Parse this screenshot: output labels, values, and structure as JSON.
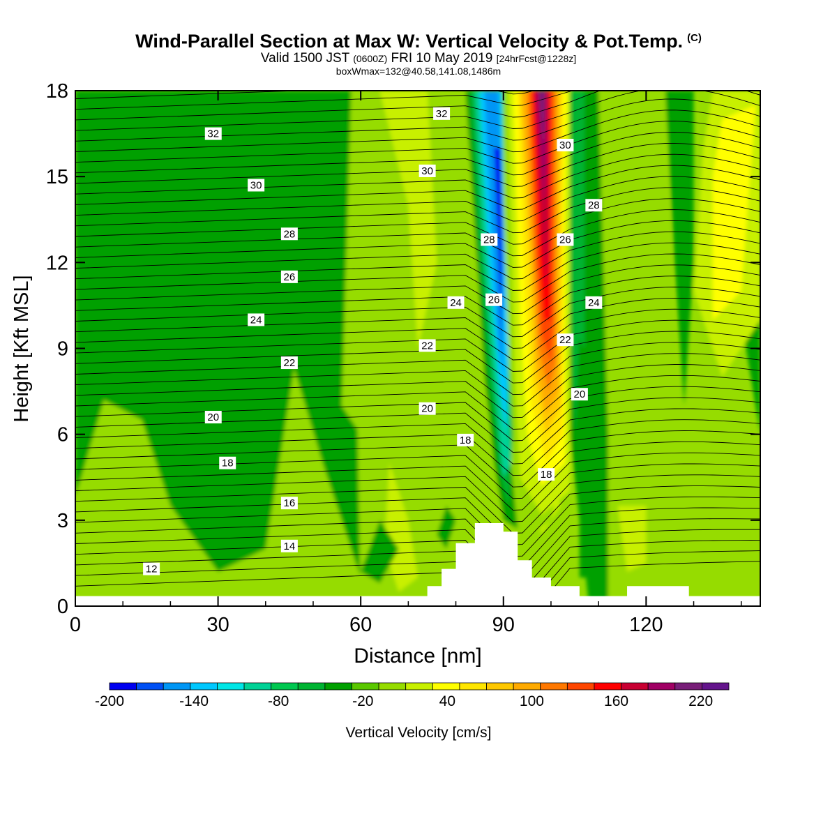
{
  "header": {
    "title": "Wind-Parallel Section at Max W: Vertical Velocity & Pot.Temp.",
    "copyright": "(C)",
    "valid_prefix": "Valid 1500 JST",
    "valid_utc": "(0600Z)",
    "valid_date": "FRI 10 May 2019",
    "forecast": "[24hrFcst@1228z]",
    "boxwmax": "boxWmax=132@40.58,141.08,1486m"
  },
  "chart_data": {
    "type": "heatmap",
    "title": "Wind-Parallel Section at Max W: Vertical Velocity & Pot.Temp.",
    "xlabel": "Distance [nm]",
    "ylabel": "Height [Kft MSL]",
    "xlim": [
      0,
      144
    ],
    "ylim": [
      0,
      18
    ],
    "xticks": [
      0,
      30,
      60,
      90,
      120
    ],
    "yticks": [
      0,
      3,
      6,
      9,
      12,
      15,
      18
    ],
    "colorbar": {
      "label": "Vertical Velocity [cm/s]",
      "tick_labels": [
        "-200",
        "-140",
        "-80",
        "-20",
        "40",
        "100",
        "160",
        "220"
      ],
      "tick_values": [
        -200,
        -140,
        -80,
        -20,
        40,
        100,
        160,
        220
      ],
      "bin_edges": [
        -200,
        -180,
        -160,
        -140,
        -120,
        -100,
        -80,
        -60,
        -40,
        -20,
        0,
        20,
        40,
        60,
        80,
        100,
        120,
        140,
        160,
        180,
        200,
        220,
        240
      ],
      "colors": [
        "#0000f0",
        "#0050f5",
        "#0096f5",
        "#00c8ff",
        "#00e6e6",
        "#00d296",
        "#00c850",
        "#00b432",
        "#00a000",
        "#5ac800",
        "#96dc00",
        "#c8f000",
        "#ffff00",
        "#ffe600",
        "#ffc800",
        "#ffaa00",
        "#ff7800",
        "#ff4600",
        "#ff0000",
        "#c80032",
        "#a00064",
        "#781e78",
        "#64148c"
      ]
    },
    "terrain": [
      {
        "x": 0,
        "h": 0.35
      },
      {
        "x": 74,
        "h": 0.35
      },
      {
        "x": 74,
        "h": 0.7
      },
      {
        "x": 77,
        "h": 0.7
      },
      {
        "x": 77,
        "h": 1.3
      },
      {
        "x": 80,
        "h": 1.3
      },
      {
        "x": 80,
        "h": 2.2
      },
      {
        "x": 84,
        "h": 2.2
      },
      {
        "x": 84,
        "h": 2.9
      },
      {
        "x": 90,
        "h": 2.9
      },
      {
        "x": 90,
        "h": 2.6
      },
      {
        "x": 93,
        "h": 2.6
      },
      {
        "x": 93,
        "h": 1.6
      },
      {
        "x": 96,
        "h": 1.6
      },
      {
        "x": 96,
        "h": 1.0
      },
      {
        "x": 100,
        "h": 1.0
      },
      {
        "x": 100,
        "h": 0.7
      },
      {
        "x": 106,
        "h": 0.7
      },
      {
        "x": 106,
        "h": 0.35
      },
      {
        "x": 116,
        "h": 0.35
      },
      {
        "x": 116,
        "h": 0.7
      },
      {
        "x": 129,
        "h": 0.7
      },
      {
        "x": 129,
        "h": 0.35
      },
      {
        "x": 144,
        "h": 0.35
      }
    ],
    "contour_labels": [
      {
        "x": 29,
        "y": 16.5,
        "t": "32"
      },
      {
        "x": 77,
        "y": 17.2,
        "t": "32"
      },
      {
        "x": 38,
        "y": 14.7,
        "t": "30"
      },
      {
        "x": 74,
        "y": 15.2,
        "t": "30"
      },
      {
        "x": 103,
        "y": 16.1,
        "t": "30"
      },
      {
        "x": 45,
        "y": 13.0,
        "t": "28"
      },
      {
        "x": 87,
        "y": 12.8,
        "t": "28"
      },
      {
        "x": 109,
        "y": 14.0,
        "t": "28"
      },
      {
        "x": 45,
        "y": 11.5,
        "t": "26"
      },
      {
        "x": 88,
        "y": 10.7,
        "t": "26"
      },
      {
        "x": 103,
        "y": 12.8,
        "t": "26"
      },
      {
        "x": 38,
        "y": 10.0,
        "t": "24"
      },
      {
        "x": 80,
        "y": 10.6,
        "t": "24"
      },
      {
        "x": 109,
        "y": 10.6,
        "t": "24"
      },
      {
        "x": 45,
        "y": 8.5,
        "t": "22"
      },
      {
        "x": 74,
        "y": 9.1,
        "t": "22"
      },
      {
        "x": 103,
        "y": 9.3,
        "t": "22"
      },
      {
        "x": 29,
        "y": 6.6,
        "t": "20"
      },
      {
        "x": 74,
        "y": 6.9,
        "t": "20"
      },
      {
        "x": 106,
        "y": 7.4,
        "t": "20"
      },
      {
        "x": 32,
        "y": 5.0,
        "t": "18"
      },
      {
        "x": 82,
        "y": 5.8,
        "t": "18"
      },
      {
        "x": 99,
        "y": 4.6,
        "t": "18"
      },
      {
        "x": 45,
        "y": 3.6,
        "t": "16"
      },
      {
        "x": 45,
        "y": 2.1,
        "t": "14"
      },
      {
        "x": 16,
        "y": 1.3,
        "t": "12"
      }
    ]
  }
}
